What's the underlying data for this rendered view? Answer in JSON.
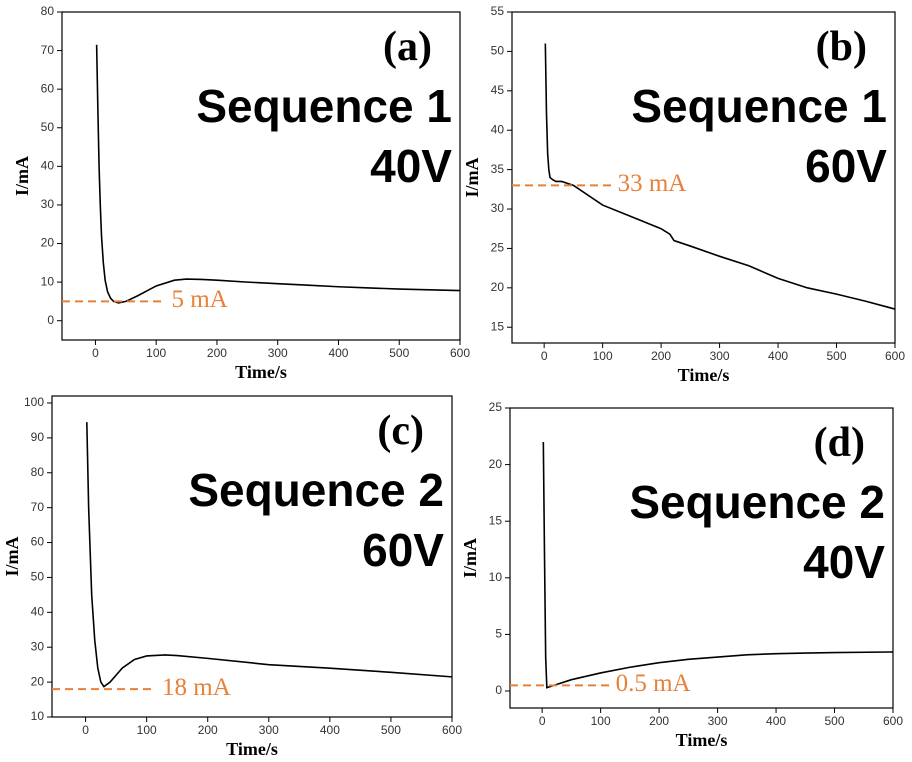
{
  "chart_data": [
    {
      "type": "line",
      "panel_label": "(a)",
      "title": "Sequence 1",
      "subtitle": "40V",
      "xlabel": "Time/s",
      "ylabel": "I/mA",
      "color": "#000000",
      "x": [
        2,
        4,
        6,
        8,
        10,
        13,
        16,
        20,
        25,
        30,
        38,
        50,
        70,
        100,
        130,
        150,
        175,
        200,
        250,
        300,
        350,
        400,
        450,
        500,
        550,
        600
      ],
      "values": [
        71.5,
        55,
        40,
        30,
        22,
        15,
        10.5,
        7.5,
        5.8,
        5,
        4.6,
        5,
        6.5,
        9,
        10.5,
        10.8,
        10.7,
        10.5,
        10,
        9.6,
        9.2,
        8.8,
        8.5,
        8.2,
        8,
        7.8
      ],
      "xlim": [
        -55,
        600
      ],
      "xticks": [
        0,
        100,
        200,
        300,
        400,
        500,
        600
      ],
      "ylim": [
        -5,
        80
      ],
      "yticks": [
        0,
        10,
        20,
        30,
        40,
        50,
        60,
        70,
        80
      ],
      "reference": {
        "value": 5,
        "label": "5 mA",
        "color": "#e8803a"
      }
    },
    {
      "type": "line",
      "panel_label": "(b)",
      "title": "Sequence 1",
      "subtitle": "60V",
      "xlabel": "Time/s",
      "ylabel": "I/mA",
      "color": "#000000",
      "x": [
        2,
        4,
        6,
        8,
        10,
        15,
        20,
        30,
        50,
        100,
        150,
        200,
        215,
        222,
        250,
        300,
        350,
        400,
        450,
        500,
        550,
        600
      ],
      "values": [
        51,
        42,
        37,
        35,
        34,
        33.7,
        33.5,
        33.5,
        33,
        30.5,
        29,
        27.5,
        26.8,
        26,
        25.3,
        24,
        22.8,
        21.2,
        20,
        19.2,
        18.3,
        17.3
      ],
      "xlim": [
        -55,
        600
      ],
      "xticks": [
        0,
        100,
        200,
        300,
        400,
        500,
        600
      ],
      "ylim": [
        13,
        55
      ],
      "yticks": [
        15,
        20,
        25,
        30,
        35,
        40,
        45,
        50,
        55
      ],
      "reference": {
        "value": 33,
        "label": "33 mA",
        "color": "#e8803a"
      }
    },
    {
      "type": "line",
      "panel_label": "(c)",
      "title": "Sequence 2",
      "subtitle": "60V",
      "xlabel": "Time/s",
      "ylabel": "I/mA",
      "color": "#000000",
      "x": [
        2,
        5,
        10,
        15,
        20,
        25,
        30,
        40,
        60,
        80,
        100,
        130,
        150,
        200,
        300,
        400,
        500,
        600
      ],
      "values": [
        94.5,
        70,
        45,
        32,
        24,
        20,
        18.7,
        20,
        24,
        26.5,
        27.5,
        27.8,
        27.6,
        26.8,
        25,
        24,
        22.8,
        21.5
      ],
      "xlim": [
        -55,
        600
      ],
      "xticks": [
        0,
        100,
        200,
        300,
        400,
        500,
        600
      ],
      "ylim": [
        10,
        102
      ],
      "yticks": [
        10,
        20,
        30,
        40,
        50,
        60,
        70,
        80,
        90,
        100
      ],
      "reference": {
        "value": 18,
        "label": "18 mA",
        "color": "#e8803a"
      }
    },
    {
      "type": "line",
      "panel_label": "(d)",
      "title": "Sequence 2",
      "subtitle": "40V",
      "xlabel": "Time/s",
      "ylabel": "I/mA",
      "color": "#000000",
      "x": [
        2,
        4,
        6,
        8,
        20,
        50,
        100,
        150,
        200,
        250,
        300,
        350,
        400,
        450,
        500,
        600
      ],
      "values": [
        22,
        12,
        3,
        0.3,
        0.5,
        1,
        1.6,
        2.1,
        2.5,
        2.8,
        3,
        3.2,
        3.3,
        3.35,
        3.4,
        3.45
      ],
      "xlim": [
        -55,
        600
      ],
      "xticks": [
        0,
        100,
        200,
        300,
        400,
        500,
        600
      ],
      "ylim": [
        -1.5,
        25
      ],
      "yticks": [
        0,
        5,
        10,
        15,
        20,
        25
      ],
      "reference": {
        "value": 0.5,
        "label": "0.5 mA",
        "color": "#e8803a"
      }
    }
  ]
}
